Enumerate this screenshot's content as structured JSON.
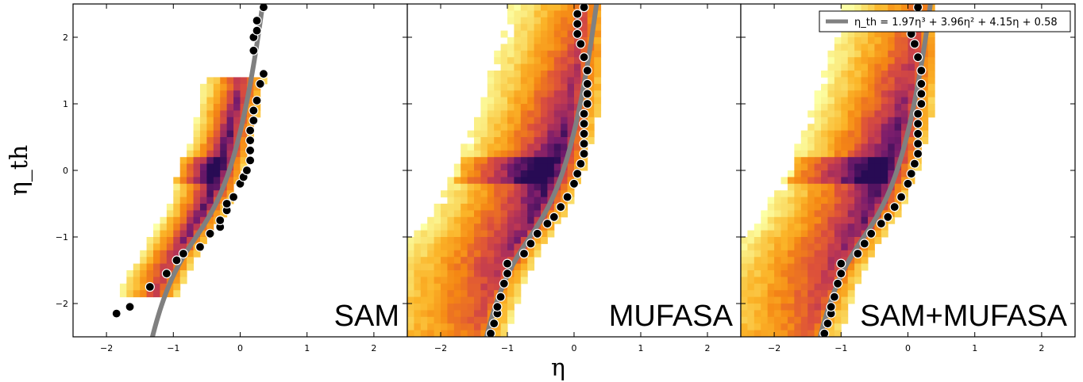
{
  "chart_data": {
    "type": "heatmap",
    "xlabel": "η",
    "ylabel": "η_th",
    "xlim": [
      -2.5,
      2.5
    ],
    "ylim": [
      -2.5,
      2.5
    ],
    "xticks": [
      -2,
      -1,
      0,
      1,
      2
    ],
    "yticks": [
      -2,
      -1,
      0,
      1,
      2
    ],
    "colormap": "inferno (reversed density)",
    "fit_line": {
      "color": "#808080",
      "coefficients": [
        1.97,
        3.96,
        4.15,
        0.58
      ],
      "legend_label": "η_th = 1.97η³ + 3.96η² + 4.15η + 0.58"
    },
    "legend_position": "top-right (third panel)",
    "panels": [
      {
        "name": "SAM",
        "points": [
          [
            -1.85,
            -2.15
          ],
          [
            -1.65,
            -2.05
          ],
          [
            -1.35,
            -1.75
          ],
          [
            -1.1,
            -1.55
          ],
          [
            -0.95,
            -1.35
          ],
          [
            -0.85,
            -1.25
          ],
          [
            -0.6,
            -1.15
          ],
          [
            -0.45,
            -0.95
          ],
          [
            -0.3,
            -0.85
          ],
          [
            -0.3,
            -0.75
          ],
          [
            -0.2,
            -0.6
          ],
          [
            -0.2,
            -0.5
          ],
          [
            -0.1,
            -0.4
          ],
          [
            0.0,
            -0.2
          ],
          [
            0.05,
            -0.1
          ],
          [
            0.1,
            0.0
          ],
          [
            0.15,
            0.15
          ],
          [
            0.15,
            0.3
          ],
          [
            0.15,
            0.45
          ],
          [
            0.15,
            0.6
          ],
          [
            0.2,
            0.75
          ],
          [
            0.2,
            0.9
          ],
          [
            0.25,
            1.05
          ],
          [
            0.3,
            1.3
          ],
          [
            0.35,
            1.45
          ],
          [
            0.2,
            1.8
          ],
          [
            0.2,
            2.0
          ],
          [
            0.25,
            2.1
          ],
          [
            0.25,
            2.25
          ],
          [
            0.35,
            2.45
          ]
        ]
      },
      {
        "name": "MUFASA",
        "points": [
          [
            -1.25,
            -2.45
          ],
          [
            -1.2,
            -2.3
          ],
          [
            -1.15,
            -2.15
          ],
          [
            -1.15,
            -2.05
          ],
          [
            -1.1,
            -1.9
          ],
          [
            -1.05,
            -1.7
          ],
          [
            -1.0,
            -1.55
          ],
          [
            -1.0,
            -1.4
          ],
          [
            -0.75,
            -1.25
          ],
          [
            -0.65,
            -1.1
          ],
          [
            -0.55,
            -0.95
          ],
          [
            -0.4,
            -0.8
          ],
          [
            -0.3,
            -0.7
          ],
          [
            -0.2,
            -0.55
          ],
          [
            -0.1,
            -0.4
          ],
          [
            0.0,
            -0.2
          ],
          [
            0.05,
            -0.05
          ],
          [
            0.1,
            0.1
          ],
          [
            0.15,
            0.25
          ],
          [
            0.15,
            0.4
          ],
          [
            0.15,
            0.55
          ],
          [
            0.15,
            0.7
          ],
          [
            0.15,
            0.85
          ],
          [
            0.2,
            1.0
          ],
          [
            0.2,
            1.15
          ],
          [
            0.2,
            1.3
          ],
          [
            0.2,
            1.5
          ],
          [
            0.15,
            1.7
          ],
          [
            0.1,
            1.9
          ],
          [
            0.05,
            2.05
          ],
          [
            0.05,
            2.2
          ],
          [
            0.05,
            2.35
          ],
          [
            0.15,
            2.45
          ]
        ]
      },
      {
        "name": "SAM+MUFASA",
        "points": [
          [
            -1.25,
            -2.45
          ],
          [
            -1.2,
            -2.3
          ],
          [
            -1.15,
            -2.15
          ],
          [
            -1.15,
            -2.05
          ],
          [
            -1.1,
            -1.9
          ],
          [
            -1.05,
            -1.7
          ],
          [
            -1.0,
            -1.55
          ],
          [
            -1.0,
            -1.4
          ],
          [
            -0.75,
            -1.25
          ],
          [
            -0.65,
            -1.1
          ],
          [
            -0.55,
            -0.95
          ],
          [
            -0.4,
            -0.8
          ],
          [
            -0.3,
            -0.7
          ],
          [
            -0.2,
            -0.55
          ],
          [
            -0.1,
            -0.4
          ],
          [
            0.0,
            -0.2
          ],
          [
            0.05,
            -0.05
          ],
          [
            0.1,
            0.1
          ],
          [
            0.15,
            0.25
          ],
          [
            0.15,
            0.4
          ],
          [
            0.15,
            0.55
          ],
          [
            0.15,
            0.7
          ],
          [
            0.15,
            0.85
          ],
          [
            0.2,
            1.0
          ],
          [
            0.2,
            1.15
          ],
          [
            0.2,
            1.3
          ],
          [
            0.2,
            1.5
          ],
          [
            0.15,
            1.7
          ],
          [
            0.1,
            1.9
          ],
          [
            0.05,
            2.05
          ],
          [
            0.05,
            2.2
          ],
          [
            0.15,
            2.45
          ]
        ]
      }
    ]
  }
}
